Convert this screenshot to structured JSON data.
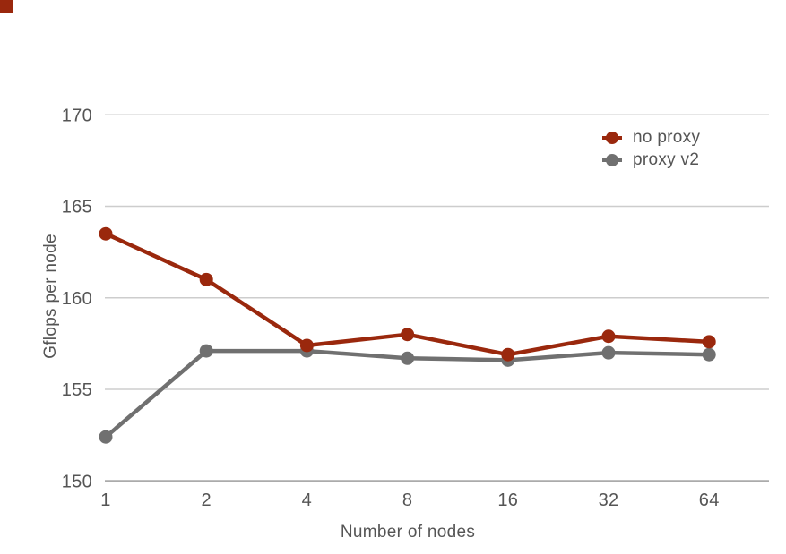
{
  "corner_marker": {
    "color": "#9a280d"
  },
  "axis_text_color": "#555555",
  "chart_data": {
    "type": "line",
    "title": "",
    "xlabel": "Number of nodes",
    "ylabel": "Gflops per node",
    "categories": [
      "1",
      "2",
      "4",
      "8",
      "16",
      "32",
      "64"
    ],
    "series": [
      {
        "name": "no proxy",
        "color": "#9a280d",
        "values": [
          163.5,
          161.0,
          157.4,
          158.0,
          156.9,
          157.9,
          157.6
        ]
      },
      {
        "name": "proxy v2",
        "color": "#707070",
        "values": [
          152.4,
          157.1,
          157.1,
          156.7,
          156.6,
          157.0,
          156.9
        ]
      }
    ],
    "ylim": [
      150,
      170
    ],
    "yticks": [
      150,
      155,
      160,
      165,
      170
    ],
    "grid": "horizontal-only",
    "gridline_color": "#cdcdcd",
    "baseline_color": "#ababab",
    "legend_position": "top-right",
    "x_scale_note": "log2-spaced node counts shown as evenly spaced categories"
  }
}
